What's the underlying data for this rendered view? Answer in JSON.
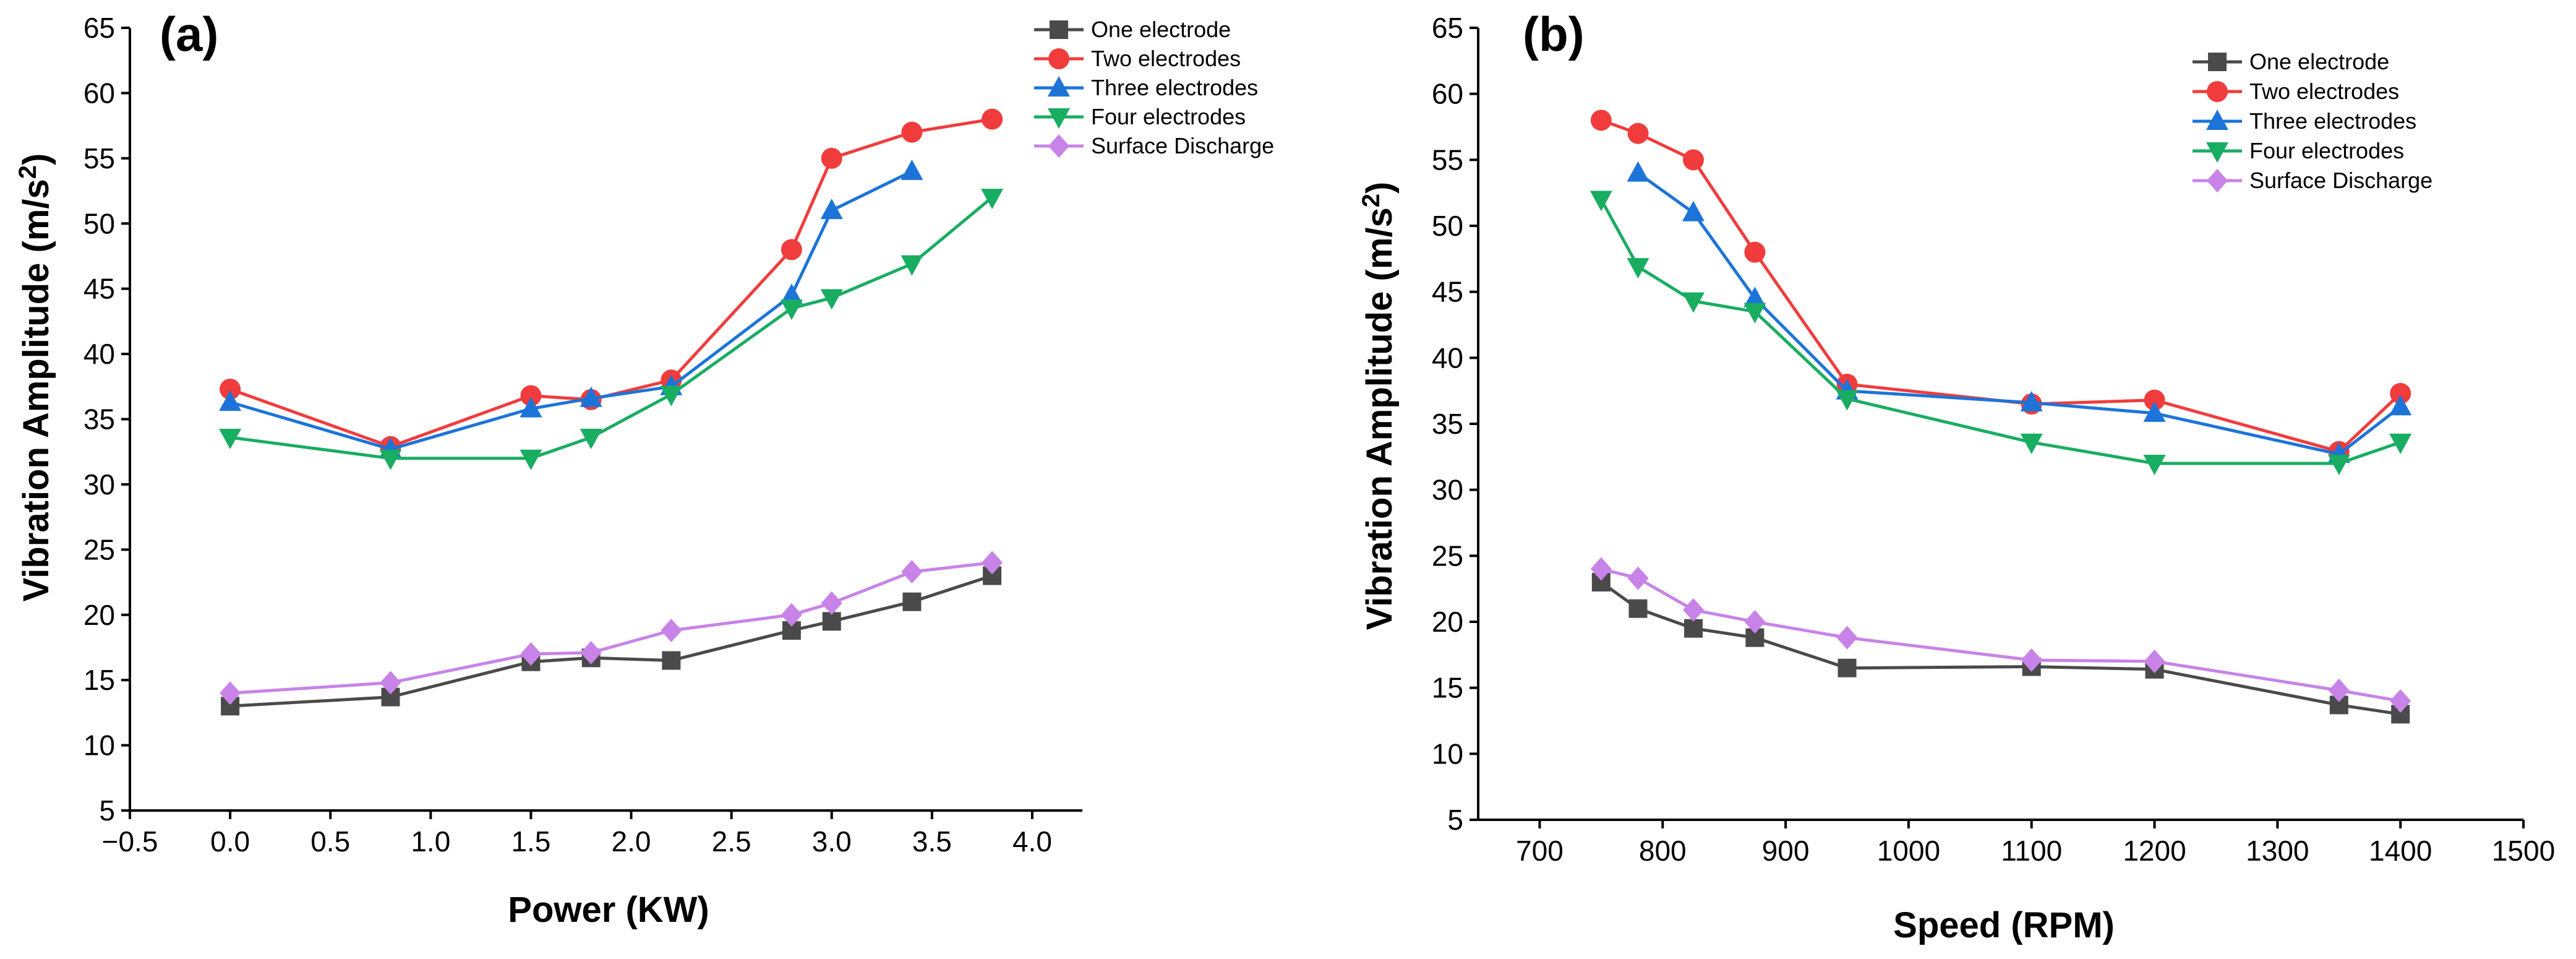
{
  "chart_data": [
    {
      "type": "line",
      "panel_label": "(a)",
      "xlabel": "Power (KW)",
      "ylabel": "Vibration Amplitude (m/s",
      "ylabel_sup": "2",
      "ylabel_close": ")",
      "xlim": [
        -0.5,
        4.25
      ],
      "ylim": [
        5,
        65
      ],
      "xticks": [
        -0.5,
        0.0,
        0.5,
        1.0,
        1.5,
        2.0,
        2.5,
        3.0,
        3.5,
        4.0
      ],
      "xtick_labels": [
        "−0.5",
        "0.0",
        "0.5",
        "1.0",
        "1.5",
        "2.0",
        "2.5",
        "3.0",
        "3.5",
        "4.0"
      ],
      "yticks": [
        5,
        10,
        15,
        20,
        25,
        30,
        35,
        40,
        45,
        50,
        55,
        60,
        65
      ],
      "ytick_labels": [
        "5",
        "10",
        "15",
        "20",
        "25",
        "30",
        "35",
        "40",
        "45",
        "50",
        "55",
        "60",
        "65"
      ],
      "legend_position": "top-right",
      "series": [
        {
          "name": "One electrode",
          "color": "#4a4a4a",
          "marker": "square",
          "x": [
            0,
            0.8,
            1.5,
            1.8,
            2.2,
            2.8,
            3.0,
            3.4,
            3.8
          ],
          "y": [
            13.0,
            13.7,
            16.4,
            16.7,
            16.5,
            18.8,
            19.5,
            21.0,
            23.0
          ]
        },
        {
          "name": "Two electrodes",
          "color": "#f03c3c",
          "marker": "circle",
          "x": [
            0,
            0.8,
            1.5,
            1.8,
            2.2,
            2.8,
            3.0,
            3.4,
            3.8
          ],
          "y": [
            37.3,
            32.9,
            36.8,
            36.5,
            38.0,
            48.0,
            55.0,
            57.0,
            58.0
          ]
        },
        {
          "name": "Three electrodes",
          "color": "#1c74d9",
          "marker": "triangle-up",
          "x": [
            0,
            0.8,
            1.5,
            1.8,
            2.2,
            2.8,
            3.0,
            3.4
          ],
          "y": [
            36.3,
            32.7,
            35.8,
            36.6,
            37.5,
            44.5,
            51.0,
            54.0
          ]
        },
        {
          "name": "Four electrodes",
          "color": "#19ad62",
          "marker": "triangle-down",
          "x": [
            0,
            0.8,
            1.5,
            1.8,
            2.2,
            2.8,
            3.0,
            3.4,
            3.8
          ],
          "y": [
            33.6,
            32.0,
            32.0,
            33.6,
            36.9,
            43.5,
            44.3,
            46.9,
            52.0
          ]
        },
        {
          "name": "Surface Discharge",
          "color": "#c883e8",
          "marker": "diamond",
          "x": [
            0,
            0.8,
            1.5,
            1.8,
            2.2,
            2.8,
            3.0,
            3.4,
            3.8
          ],
          "y": [
            14.0,
            14.8,
            17.0,
            17.1,
            18.8,
            20.0,
            20.9,
            23.3,
            24.0
          ]
        }
      ]
    },
    {
      "type": "line",
      "panel_label": "(b)",
      "xlabel": "Speed (RPM)",
      "ylabel": "Vibration Amplitude (m/s",
      "ylabel_sup": "2",
      "ylabel_close": ")",
      "xlim": [
        650,
        1500
      ],
      "ylim": [
        5,
        65
      ],
      "xticks": [
        700,
        800,
        900,
        1000,
        1100,
        1200,
        1300,
        1400,
        1500
      ],
      "xtick_labels": [
        "700",
        "800",
        "900",
        "1000",
        "1100",
        "1200",
        "1300",
        "1400",
        "1500"
      ],
      "yticks": [
        5,
        10,
        15,
        20,
        25,
        30,
        35,
        40,
        45,
        50,
        55,
        60,
        65
      ],
      "ytick_labels": [
        "5",
        "10",
        "15",
        "20",
        "25",
        "30",
        "35",
        "40",
        "45",
        "50",
        "55",
        "60",
        "65"
      ],
      "legend_position": "top-right",
      "series": [
        {
          "name": "One electrode",
          "color": "#4a4a4a",
          "marker": "square",
          "x": [
            750,
            780,
            825,
            875,
            950,
            1100,
            1200,
            1350,
            1400
          ],
          "y": [
            23.0,
            21.0,
            19.5,
            18.8,
            16.5,
            16.6,
            16.4,
            13.7,
            13.0
          ]
        },
        {
          "name": "Two electrodes",
          "color": "#f03c3c",
          "marker": "circle",
          "x": [
            750,
            780,
            825,
            875,
            950,
            1100,
            1200,
            1350,
            1400
          ],
          "y": [
            58.0,
            57.0,
            55.0,
            48.0,
            38.0,
            36.5,
            36.8,
            32.9,
            37.3
          ]
        },
        {
          "name": "Three electrodes",
          "color": "#1c74d9",
          "marker": "triangle-up",
          "x": [
            780,
            825,
            875,
            950,
            1100,
            1200,
            1350,
            1400
          ],
          "y": [
            54.0,
            51.0,
            44.5,
            37.5,
            36.6,
            35.8,
            32.7,
            36.3
          ]
        },
        {
          "name": "Four electrodes",
          "color": "#19ad62",
          "marker": "triangle-down",
          "x": [
            750,
            780,
            825,
            875,
            950,
            1100,
            1200,
            1350,
            1400
          ],
          "y": [
            52.0,
            46.9,
            44.3,
            43.5,
            36.9,
            33.6,
            32.0,
            32.0,
            33.6
          ]
        },
        {
          "name": "Surface Discharge",
          "color": "#c883e8",
          "marker": "diamond",
          "x": [
            750,
            780,
            825,
            875,
            950,
            1100,
            1200,
            1350,
            1400
          ],
          "y": [
            24.0,
            23.3,
            20.9,
            20.0,
            18.8,
            17.1,
            17.0,
            14.8,
            14.0
          ]
        }
      ]
    }
  ]
}
